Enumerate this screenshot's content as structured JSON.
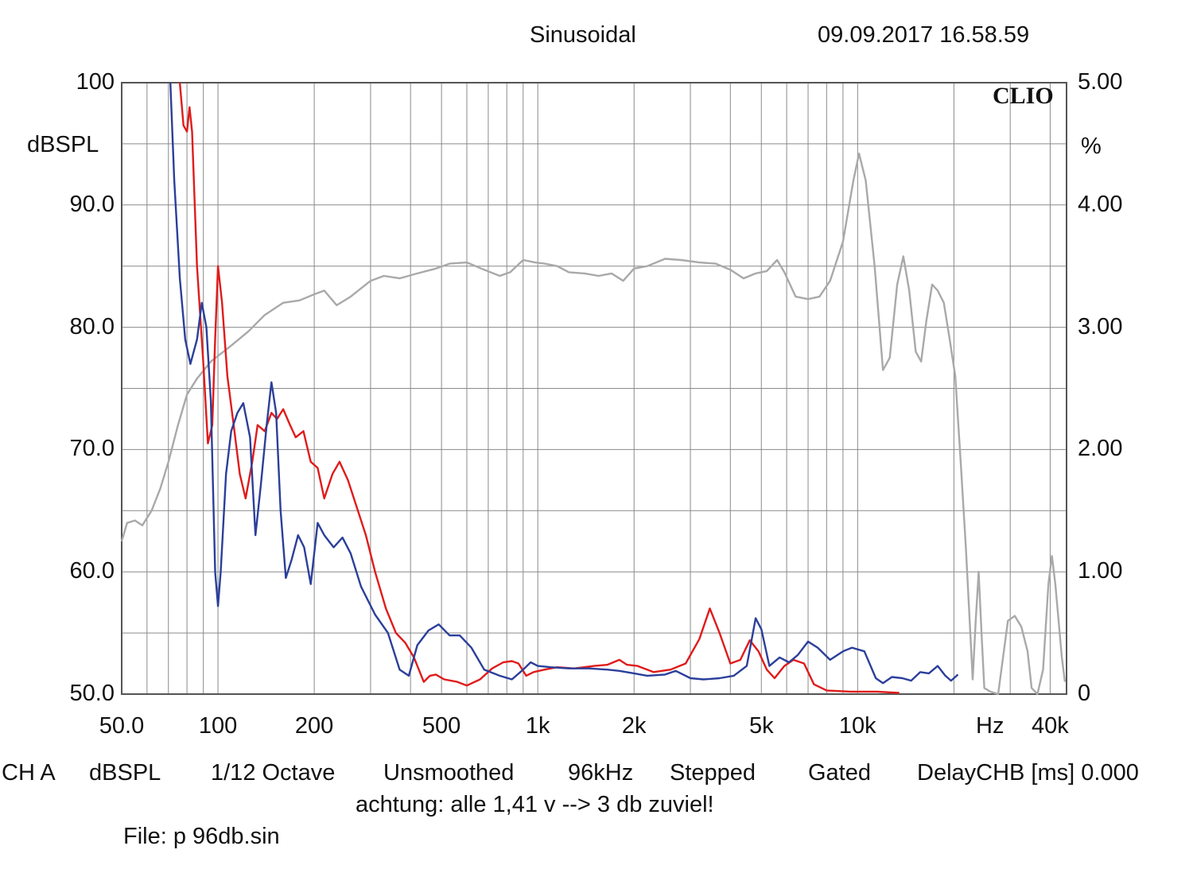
{
  "header": {
    "mode": "Sinusoidal",
    "timestamp": "09.09.2017 16.58.59",
    "brand": "CLIO"
  },
  "footer": {
    "channel": "CH A",
    "unit": "dBSPL",
    "resolution": "1/12 Octave",
    "smoothing": "Unsmoothed",
    "samplerate": "96kHz",
    "sweep": "Stepped",
    "window": "Gated",
    "delay": "DelayCHB [ms] 0.000",
    "note": "achtung: alle 1,41 v --> 3 db zuviel!",
    "file": "File: p 96db.sin"
  },
  "chart_data": {
    "type": "line",
    "x_scale": "log",
    "xlim": [
      50,
      45000
    ],
    "ylim": [
      50,
      100
    ],
    "y2lim": [
      0,
      5
    ],
    "ylabel": "dBSPL",
    "y2label": "%",
    "xunit_label": "Hz",
    "grid": true,
    "x_tick_labels": [
      {
        "x": 50,
        "label": "50.0"
      },
      {
        "x": 100,
        "label": "100"
      },
      {
        "x": 200,
        "label": "200"
      },
      {
        "x": 500,
        "label": "500"
      },
      {
        "x": 1000,
        "label": "1k"
      },
      {
        "x": 2000,
        "label": "2k"
      },
      {
        "x": 5000,
        "label": "5k"
      },
      {
        "x": 10000,
        "label": "10k"
      },
      {
        "x": 40000,
        "label": "40k"
      }
    ],
    "y_tick_labels": [
      {
        "y": 100,
        "label": "100"
      },
      {
        "y": 90,
        "label": "90.0"
      },
      {
        "y": 80,
        "label": "80.0"
      },
      {
        "y": 70,
        "label": "70.0"
      },
      {
        "y": 60,
        "label": "60.0"
      },
      {
        "y": 50,
        "label": "50.0"
      }
    ],
    "y2_tick_labels": [
      {
        "y": 5,
        "label": "5.00"
      },
      {
        "y": 4,
        "label": "4.00"
      },
      {
        "y": 3,
        "label": "3.00"
      },
      {
        "y": 2,
        "label": "2.00"
      },
      {
        "y": 1,
        "label": "1.00"
      },
      {
        "y": 0,
        "label": "0"
      }
    ],
    "series": [
      {
        "color": "#a9a9a9",
        "axis": "right",
        "points": [
          [
            50,
            1.25
          ],
          [
            52,
            1.4
          ],
          [
            55,
            1.42
          ],
          [
            58,
            1.38
          ],
          [
            62,
            1.5
          ],
          [
            66,
            1.68
          ],
          [
            70,
            1.9
          ],
          [
            75,
            2.2
          ],
          [
            80,
            2.45
          ],
          [
            86,
            2.58
          ],
          [
            95,
            2.72
          ],
          [
            110,
            2.85
          ],
          [
            125,
            2.97
          ],
          [
            140,
            3.1
          ],
          [
            160,
            3.2
          ],
          [
            180,
            3.22
          ],
          [
            200,
            3.27
          ],
          [
            215,
            3.3
          ],
          [
            235,
            3.18
          ],
          [
            260,
            3.25
          ],
          [
            300,
            3.38
          ],
          [
            330,
            3.42
          ],
          [
            370,
            3.4
          ],
          [
            420,
            3.44
          ],
          [
            480,
            3.48
          ],
          [
            530,
            3.52
          ],
          [
            600,
            3.53
          ],
          [
            680,
            3.47
          ],
          [
            760,
            3.42
          ],
          [
            820,
            3.45
          ],
          [
            900,
            3.55
          ],
          [
            980,
            3.53
          ],
          [
            1050,
            3.52
          ],
          [
            1150,
            3.5
          ],
          [
            1250,
            3.45
          ],
          [
            1400,
            3.44
          ],
          [
            1550,
            3.42
          ],
          [
            1700,
            3.44
          ],
          [
            1850,
            3.38
          ],
          [
            2000,
            3.48
          ],
          [
            2200,
            3.5
          ],
          [
            2500,
            3.56
          ],
          [
            2800,
            3.55
          ],
          [
            3200,
            3.53
          ],
          [
            3600,
            3.52
          ],
          [
            4000,
            3.47
          ],
          [
            4400,
            3.4
          ],
          [
            4800,
            3.44
          ],
          [
            5200,
            3.46
          ],
          [
            5600,
            3.55
          ],
          [
            5900,
            3.45
          ],
          [
            6400,
            3.25
          ],
          [
            7000,
            3.23
          ],
          [
            7600,
            3.25
          ],
          [
            8200,
            3.38
          ],
          [
            9000,
            3.7
          ],
          [
            9700,
            4.2
          ],
          [
            10100,
            4.42
          ],
          [
            10600,
            4.2
          ],
          [
            11300,
            3.5
          ],
          [
            12000,
            2.65
          ],
          [
            12600,
            2.75
          ],
          [
            13300,
            3.35
          ],
          [
            13900,
            3.58
          ],
          [
            14500,
            3.3
          ],
          [
            15200,
            2.8
          ],
          [
            15800,
            2.72
          ],
          [
            16400,
            3.05
          ],
          [
            17100,
            3.35
          ],
          [
            17800,
            3.3
          ],
          [
            18600,
            3.2
          ],
          [
            19400,
            2.9
          ],
          [
            20200,
            2.6
          ],
          [
            21000,
            1.9
          ],
          [
            21800,
            1.2
          ],
          [
            22400,
            0.6
          ],
          [
            22900,
            0.12
          ],
          [
            23400,
            0.6
          ],
          [
            23900,
            1.0
          ],
          [
            24400,
            0.5
          ],
          [
            24900,
            0.05
          ],
          [
            26000,
            0.02
          ],
          [
            27500,
            0.0
          ],
          [
            29500,
            0.6
          ],
          [
            31000,
            0.64
          ],
          [
            32500,
            0.55
          ],
          [
            34000,
            0.35
          ],
          [
            35000,
            0.05
          ],
          [
            36500,
            0.0
          ],
          [
            38000,
            0.2
          ],
          [
            39500,
            0.9
          ],
          [
            40500,
            1.13
          ],
          [
            41500,
            0.9
          ],
          [
            42500,
            0.6
          ],
          [
            43500,
            0.3
          ],
          [
            44500,
            0.1
          ]
        ]
      },
      {
        "color": "#e01b1b",
        "axis": "left",
        "points": [
          [
            76,
            100
          ],
          [
            78,
            96.5
          ],
          [
            80,
            96
          ],
          [
            81.5,
            98
          ],
          [
            83,
            96
          ],
          [
            86,
            85
          ],
          [
            90,
            77
          ],
          [
            93,
            70.5
          ],
          [
            96,
            72
          ],
          [
            98,
            79
          ],
          [
            100,
            85
          ],
          [
            103,
            82
          ],
          [
            107,
            76
          ],
          [
            112,
            72
          ],
          [
            117,
            68
          ],
          [
            122,
            66
          ],
          [
            128,
            69
          ],
          [
            133,
            72
          ],
          [
            140,
            71.5
          ],
          [
            147,
            73
          ],
          [
            153,
            72.5
          ],
          [
            160,
            73.3
          ],
          [
            168,
            72
          ],
          [
            175,
            71
          ],
          [
            185,
            71.5
          ],
          [
            195,
            69
          ],
          [
            205,
            68.5
          ],
          [
            215,
            66
          ],
          [
            228,
            68
          ],
          [
            240,
            69
          ],
          [
            255,
            67.5
          ],
          [
            270,
            65.5
          ],
          [
            290,
            63
          ],
          [
            310,
            60
          ],
          [
            335,
            57
          ],
          [
            360,
            55
          ],
          [
            385,
            54.2
          ],
          [
            410,
            53
          ],
          [
            440,
            51
          ],
          [
            460,
            51.5
          ],
          [
            480,
            51.6
          ],
          [
            510,
            51.2
          ],
          [
            560,
            51
          ],
          [
            600,
            50.7
          ],
          [
            660,
            51.2
          ],
          [
            720,
            52.1
          ],
          [
            780,
            52.6
          ],
          [
            830,
            52.7
          ],
          [
            870,
            52.5
          ],
          [
            920,
            51.5
          ],
          [
            970,
            51.8
          ],
          [
            1050,
            52
          ],
          [
            1150,
            52.2
          ],
          [
            1300,
            52.1
          ],
          [
            1500,
            52.3
          ],
          [
            1650,
            52.4
          ],
          [
            1800,
            52.8
          ],
          [
            1900,
            52.4
          ],
          [
            2050,
            52.3
          ],
          [
            2300,
            51.8
          ],
          [
            2600,
            52
          ],
          [
            2900,
            52.5
          ],
          [
            3200,
            54.5
          ],
          [
            3450,
            57
          ],
          [
            3700,
            55
          ],
          [
            4000,
            52.5
          ],
          [
            4300,
            52.8
          ],
          [
            4600,
            54.4
          ],
          [
            4900,
            53.5
          ],
          [
            5200,
            52
          ],
          [
            5500,
            51.3
          ],
          [
            5900,
            52.3
          ],
          [
            6300,
            52.8
          ],
          [
            6800,
            52.5
          ],
          [
            7300,
            50.8
          ],
          [
            8000,
            50.3
          ],
          [
            9500,
            50.2
          ],
          [
            11500,
            50.2
          ],
          [
            13500,
            50.1
          ]
        ]
      },
      {
        "color": "#2b3f9a",
        "axis": "left",
        "points": [
          [
            71,
            100
          ],
          [
            73,
            92
          ],
          [
            76,
            84
          ],
          [
            79,
            79
          ],
          [
            82,
            77
          ],
          [
            86,
            79
          ],
          [
            89,
            82
          ],
          [
            92,
            80
          ],
          [
            95,
            74
          ],
          [
            98,
            60
          ],
          [
            100,
            57.2
          ],
          [
            102,
            60
          ],
          [
            106,
            68
          ],
          [
            110,
            71.5
          ],
          [
            115,
            73
          ],
          [
            120,
            73.8
          ],
          [
            126,
            71
          ],
          [
            131,
            63
          ],
          [
            136,
            67
          ],
          [
            142,
            72
          ],
          [
            147,
            75.5
          ],
          [
            152,
            73
          ],
          [
            157,
            65
          ],
          [
            163,
            59.5
          ],
          [
            170,
            61
          ],
          [
            178,
            63
          ],
          [
            186,
            62
          ],
          [
            195,
            59
          ],
          [
            205,
            64
          ],
          [
            215,
            63
          ],
          [
            230,
            62
          ],
          [
            245,
            62.8
          ],
          [
            260,
            61.5
          ],
          [
            280,
            58.8
          ],
          [
            310,
            56.5
          ],
          [
            340,
            55
          ],
          [
            370,
            52
          ],
          [
            395,
            51.5
          ],
          [
            420,
            54
          ],
          [
            455,
            55.2
          ],
          [
            490,
            55.7
          ],
          [
            530,
            54.8
          ],
          [
            570,
            54.8
          ],
          [
            620,
            53.8
          ],
          [
            680,
            52
          ],
          [
            760,
            51.5
          ],
          [
            830,
            51.2
          ],
          [
            900,
            52
          ],
          [
            950,
            52.6
          ],
          [
            1000,
            52.3
          ],
          [
            1100,
            52.2
          ],
          [
            1250,
            52.1
          ],
          [
            1450,
            52.1
          ],
          [
            1650,
            52
          ],
          [
            1800,
            51.9
          ],
          [
            2000,
            51.7
          ],
          [
            2200,
            51.5
          ],
          [
            2500,
            51.6
          ],
          [
            2700,
            51.9
          ],
          [
            3000,
            51.3
          ],
          [
            3300,
            51.2
          ],
          [
            3700,
            51.3
          ],
          [
            4100,
            51.5
          ],
          [
            4500,
            52.3
          ],
          [
            4800,
            56.2
          ],
          [
            5000,
            55.3
          ],
          [
            5300,
            52.3
          ],
          [
            5700,
            53
          ],
          [
            6100,
            52.6
          ],
          [
            6500,
            53.2
          ],
          [
            7000,
            54.3
          ],
          [
            7500,
            53.8
          ],
          [
            8200,
            52.8
          ],
          [
            9000,
            53.5
          ],
          [
            9600,
            53.8
          ],
          [
            10500,
            53.5
          ],
          [
            11400,
            51.3
          ],
          [
            12000,
            50.9
          ],
          [
            12800,
            51.4
          ],
          [
            13800,
            51.3
          ],
          [
            14700,
            51.1
          ],
          [
            15700,
            51.8
          ],
          [
            16700,
            51.7
          ],
          [
            17800,
            52.3
          ],
          [
            18800,
            51.5
          ],
          [
            19600,
            51.1
          ],
          [
            20600,
            51.6
          ]
        ]
      }
    ]
  }
}
